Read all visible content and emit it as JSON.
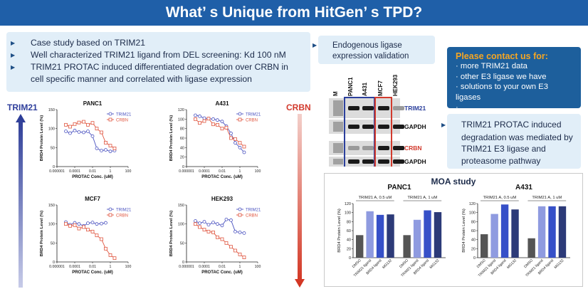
{
  "banner": {
    "title": "What’ s Unique from HitGen’ s TPD?"
  },
  "intro": {
    "bullets": [
      "Case study based on TRIM21",
      "Well characterized TRIM21 ligand from DEL screening: Kd 100 nM",
      "TRIM21 PROTAC induced differentiated degradation over CRBN in cell specific manner and correlated with ligase expression"
    ]
  },
  "gradient_labels": {
    "left": "TRIM21",
    "right": "CRBN"
  },
  "blot": {
    "title": "Endogenous ligase expression validation",
    "lanes": [
      "M",
      "PANC1",
      "A431",
      "MCF7",
      "HEK293"
    ],
    "rows": [
      "TRIM21",
      "GAPDH",
      "CRBN",
      "GAPDH"
    ],
    "colors": {
      "trim21": "#2b3f9c",
      "crbn": "#d23a2d"
    }
  },
  "contact": {
    "header": "Please contact us for:",
    "items": [
      "more TRIM21 data",
      "other E3 ligase we have",
      "solutions to your own E3 ligases",
      "…"
    ]
  },
  "conclusion": "TRIM21 PROTAC induced degradation was mediated by TRIM21 E3 ligase and proteasome pathway",
  "chart_data": [
    {
      "type": "scatter",
      "title": "PANC1",
      "xlabel": "PROTAC Conc. (uM)",
      "ylabel": "BRD4 Protein Level (%)",
      "xscale": "log",
      "xlim": [
        1e-06,
        100
      ],
      "ylim": [
        0,
        150
      ],
      "xticks": [
        "0.000001",
        "0.0001",
        "0.01",
        "1",
        "100"
      ],
      "yticks": [
        0,
        50,
        100,
        150
      ],
      "series": [
        {
          "name": "TRIM21",
          "color": "#4a52c0",
          "marker": "circle",
          "x": [
            1e-05,
            3e-05,
            0.0001,
            0.0003,
            0.001,
            0.003,
            0.01,
            0.03,
            0.1,
            0.3,
            1,
            3
          ],
          "y": [
            93,
            88,
            95,
            91,
            90,
            93,
            80,
            48,
            42,
            44,
            40,
            42
          ]
        },
        {
          "name": "CRBN",
          "color": "#e0553f",
          "marker": "square",
          "x": [
            1e-05,
            3e-05,
            0.0001,
            0.0003,
            0.001,
            0.003,
            0.01,
            0.03,
            0.1,
            0.3,
            1,
            3
          ],
          "y": [
            110,
            105,
            112,
            116,
            118,
            110,
            115,
            100,
            90,
            63,
            55,
            48
          ]
        }
      ]
    },
    {
      "type": "scatter",
      "title": "A431",
      "xlabel": "PROTAC Conc. (uM)",
      "ylabel": "BRD4 Protein Level (%)",
      "xscale": "log",
      "xlim": [
        1e-06,
        100
      ],
      "ylim": [
        0,
        120
      ],
      "xticks": [
        "0.000001",
        "0.0001",
        "0.01",
        "1",
        "100"
      ],
      "yticks": [
        0,
        20,
        40,
        60,
        80,
        100,
        120
      ],
      "series": [
        {
          "name": "TRIM21",
          "color": "#4a52c0",
          "marker": "circle",
          "x": [
            1e-05,
            3e-05,
            0.0001,
            0.0003,
            0.001,
            0.003,
            0.01,
            0.03,
            0.1,
            0.3,
            1,
            3
          ],
          "y": [
            108,
            106,
            102,
            101,
            100,
            98,
            95,
            85,
            70,
            50,
            40,
            30
          ]
        },
        {
          "name": "CRBN",
          "color": "#e0553f",
          "marker": "square",
          "x": [
            1e-05,
            3e-05,
            0.0001,
            0.0003,
            0.001,
            0.003,
            0.01,
            0.03,
            0.1,
            0.3,
            1,
            3
          ],
          "y": [
            100,
            92,
            96,
            101,
            89,
            88,
            80,
            82,
            60,
            58,
            50,
            42
          ]
        }
      ]
    },
    {
      "type": "scatter",
      "title": "MCF7",
      "xlabel": "PROTAC Conc. (uM)",
      "ylabel": "BRD4 Protein Level (%)",
      "xscale": "log",
      "xlim": [
        1e-06,
        100
      ],
      "ylim": [
        0,
        150
      ],
      "xticks": [
        "0.000001",
        "0.0001",
        "0.01",
        "1",
        "100"
      ],
      "yticks": [
        0,
        50,
        100,
        150
      ],
      "series": [
        {
          "name": "TRIM21",
          "color": "#4a52c0",
          "marker": "circle",
          "x": [
            1e-05,
            3e-05,
            0.0001,
            0.0003,
            0.001,
            0.003,
            0.01,
            0.03,
            0.1,
            0.3
          ],
          "y": [
            105,
            98,
            103,
            100,
            95,
            102,
            104,
            100,
            101,
            103
          ]
        },
        {
          "name": "CRBN",
          "color": "#e0553f",
          "marker": "square",
          "x": [
            1e-05,
            3e-05,
            0.0001,
            0.0003,
            0.001,
            0.003,
            0.01,
            0.03,
            0.1,
            0.3,
            1,
            3
          ],
          "y": [
            100,
            95,
            97,
            88,
            92,
            85,
            80,
            70,
            60,
            35,
            18,
            10
          ]
        }
      ]
    },
    {
      "type": "scatter",
      "title": "HEK293",
      "xlabel": "PROTAC Conc. (uM)",
      "ylabel": "BRD4 Protein Level (%)",
      "xscale": "log",
      "xlim": [
        1e-06,
        100
      ],
      "ylim": [
        0,
        150
      ],
      "xticks": [
        "0.000001",
        "0.0001",
        "0.01",
        "1",
        "100"
      ],
      "yticks": [
        0,
        50,
        100,
        150
      ],
      "series": [
        {
          "name": "TRIM21",
          "color": "#4a52c0",
          "marker": "circle",
          "x": [
            1e-05,
            3e-05,
            0.0001,
            0.0003,
            0.001,
            0.003,
            0.01,
            0.03,
            0.1,
            0.3,
            1,
            3
          ],
          "y": [
            108,
            102,
            106,
            98,
            104,
            100,
            96,
            112,
            110,
            80,
            78,
            76
          ]
        },
        {
          "name": "CRBN",
          "color": "#e0553f",
          "marker": "square",
          "x": [
            1e-05,
            3e-05,
            0.0001,
            0.0003,
            0.001,
            0.003,
            0.01,
            0.03,
            0.1,
            0.3,
            1,
            3
          ],
          "y": [
            100,
            92,
            85,
            80,
            78,
            65,
            60,
            50,
            40,
            30,
            20,
            12
          ]
        }
      ]
    },
    {
      "type": "bar",
      "title": "PANC1",
      "ylabel": "BRD4 Protein Level (%)",
      "ylim": [
        0,
        120
      ],
      "yticks": [
        0,
        20,
        40,
        60,
        80,
        100,
        120
      ],
      "groups": [
        "TRIM21 A, 0.5 uM",
        "TRIM21 A, 1 uM"
      ],
      "categories": [
        "DMSO",
        "TRIM21 ligand",
        "BRD4 ligand",
        "MG132",
        "DMSO",
        "TRIM21 ligand",
        "BRD4 ligand",
        "MG132"
      ],
      "values": [
        50,
        103,
        95,
        96,
        50,
        84,
        105,
        101
      ],
      "colors": [
        "#555555",
        "#8f9be0",
        "#3650c8",
        "#2c3a78",
        "#555555",
        "#8f9be0",
        "#3650c8",
        "#2c3a78"
      ]
    },
    {
      "type": "bar",
      "title": "A431",
      "ylabel": "BRD4 Protein Level (%)",
      "ylim": [
        0,
        120
      ],
      "yticks": [
        0,
        20,
        40,
        60,
        80,
        100,
        120
      ],
      "groups": [
        "TRIM21 A, 0.5 uM",
        "TRIM21 A, 1 uM"
      ],
      "categories": [
        "DMSO",
        "TRIM21 ligand",
        "BRD4 ligand",
        "MG132",
        "DMSO",
        "TRIM21 ligand",
        "BRD4 ligand",
        "MG132"
      ],
      "values": [
        52,
        97,
        118,
        107,
        43,
        114,
        114,
        114
      ],
      "colors": [
        "#555555",
        "#8f9be0",
        "#3650c8",
        "#2c3a78",
        "#555555",
        "#8f9be0",
        "#3650c8",
        "#2c3a78"
      ]
    }
  ],
  "moa": {
    "title": "MOA study"
  }
}
